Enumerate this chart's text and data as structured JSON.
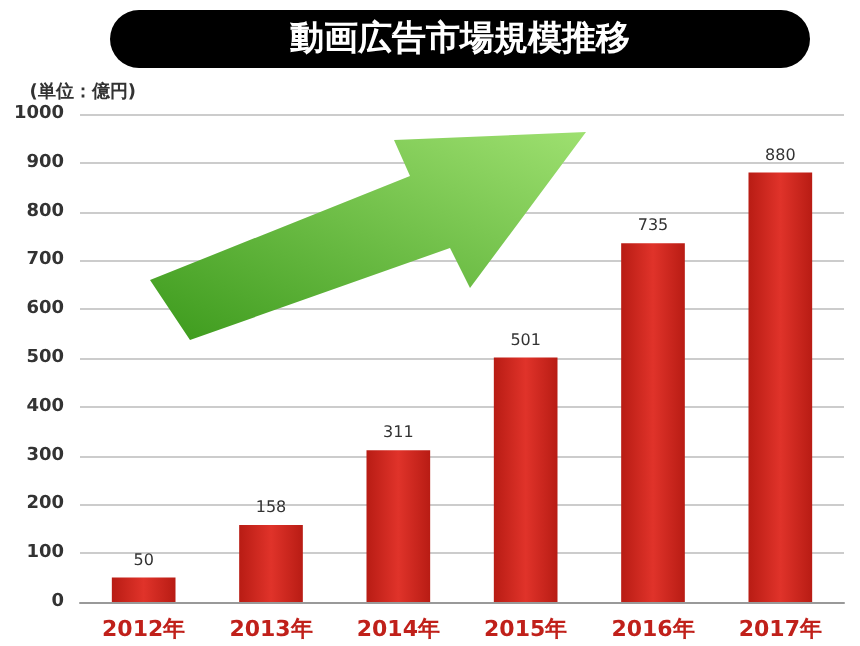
{
  "chart_data": {
    "type": "bar",
    "title": "動画広告市場規模推移",
    "ylabel": "(単位：億円)",
    "categories": [
      "2012年",
      "2013年",
      "2014年",
      "2015年",
      "2016年",
      "2017年"
    ],
    "values": [
      50,
      158,
      311,
      501,
      735,
      880
    ],
    "color": "#b81c14",
    "ylim": [
      0,
      1000
    ],
    "yticks": [
      0,
      100,
      200,
      300,
      400,
      500,
      600,
      700,
      800,
      900,
      1000
    ],
    "grid": "y",
    "data_labels": true
  }
}
